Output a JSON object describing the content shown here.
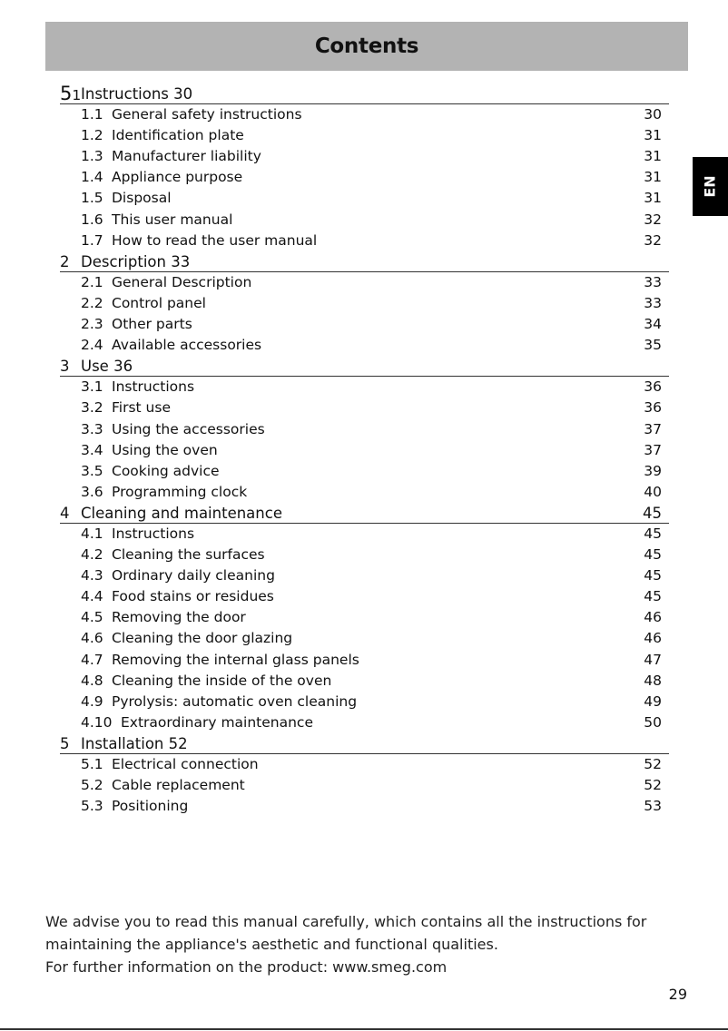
{
  "header": {
    "title": "Contents"
  },
  "language_tab": "EN",
  "toc": [
    {
      "num": "51",
      "title": "Instructions 30",
      "page": "",
      "items": [
        {
          "num": "1.1",
          "title": "General safety instructions",
          "page": "30"
        },
        {
          "num": "1.2",
          "title": "Identification plate",
          "page": "31"
        },
        {
          "num": "1.3",
          "title": "Manufacturer liability",
          "page": "31"
        },
        {
          "num": "1.4",
          "title": "Appliance purpose",
          "page": "31"
        },
        {
          "num": "1.5",
          "title": "Disposal",
          "page": "31"
        },
        {
          "num": "1.6",
          "title": "This user manual",
          "page": "32"
        },
        {
          "num": "1.7",
          "title": "How to read the user manual",
          "page": "32"
        }
      ]
    },
    {
      "num": "2",
      "title": "Description 33",
      "page": "",
      "items": [
        {
          "num": "2.1",
          "title": "General Description",
          "page": "33"
        },
        {
          "num": "2.2",
          "title": "Control panel",
          "page": "33"
        },
        {
          "num": "2.3",
          "title": "Other parts",
          "page": "34"
        },
        {
          "num": "2.4",
          "title": "Available accessories",
          "page": "35"
        }
      ]
    },
    {
      "num": "3",
      "title": "Use 36",
      "page": "",
      "items": [
        {
          "num": "3.1",
          "title": "Instructions",
          "page": "36"
        },
        {
          "num": "3.2",
          "title": "First use",
          "page": "36"
        },
        {
          "num": "3.3",
          "title": "Using the accessories",
          "page": "37"
        },
        {
          "num": "3.4",
          "title": "Using the oven",
          "page": "37"
        },
        {
          "num": "3.5",
          "title": "Cooking advice",
          "page": "39"
        },
        {
          "num": "3.6",
          "title": "Programming clock",
          "page": "40"
        }
      ]
    },
    {
      "num": "4",
      "title": "Cleaning and maintenance",
      "page": "45",
      "items": [
        {
          "num": "4.1",
          "title": "Instructions",
          "page": "45"
        },
        {
          "num": "4.2",
          "title": "Cleaning the surfaces",
          "page": "45"
        },
        {
          "num": "4.3",
          "title": "Ordinary daily cleaning",
          "page": "45"
        },
        {
          "num": "4.4",
          "title": "Food stains or residues",
          "page": "45"
        },
        {
          "num": "4.5",
          "title": "Removing the door",
          "page": "46"
        },
        {
          "num": "4.6",
          "title": "Cleaning the door glazing",
          "page": "46"
        },
        {
          "num": "4.7",
          "title": "Removing the internal glass panels",
          "page": "47"
        },
        {
          "num": "4.8",
          "title": "Cleaning the inside of the oven",
          "page": "48"
        },
        {
          "num": "4.9",
          "title": "Pyrolysis: automatic oven cleaning",
          "page": "49"
        },
        {
          "num": "4.10",
          "title": "Extraordinary maintenance",
          "page": "50"
        }
      ]
    },
    {
      "num": "5",
      "title": "Installation 52",
      "page": "",
      "items": [
        {
          "num": "5.1",
          "title": "Electrical connection",
          "page": "52"
        },
        {
          "num": "5.2",
          "title": "Cable replacement",
          "page": "52"
        },
        {
          "num": "5.3",
          "title": "Positioning",
          "page": "53"
        }
      ]
    }
  ],
  "footer": {
    "line1": "We advise you to read this manual carefully, which contains all the instructions for",
    "line2": "maintaining the appliance's aesthetic and functional qualities.",
    "line3": "For further information on the product: www.smeg.com"
  },
  "page_number": "29"
}
